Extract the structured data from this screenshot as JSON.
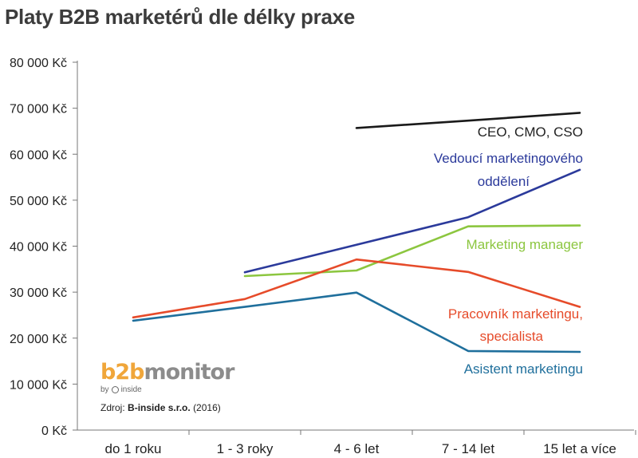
{
  "chart_data": {
    "type": "line",
    "title": "Platy B2B marketérů dle délky praxe",
    "categories": [
      "do 1 roku",
      "1 - 3 roky",
      "4 - 6 let",
      "7 - 14 let",
      "15 let a více"
    ],
    "ylim": [
      0,
      80000
    ],
    "y_ticks": [
      {
        "value": 0,
        "label": "0 Kč"
      },
      {
        "value": 10000,
        "label": "10 000 Kč"
      },
      {
        "value": 20000,
        "label": "20 000 Kč"
      },
      {
        "value": 30000,
        "label": "30 000 Kč"
      },
      {
        "value": 40000,
        "label": "40 000 Kč"
      },
      {
        "value": 50000,
        "label": "50 000 Kč"
      },
      {
        "value": 60000,
        "label": "60 000 Kč"
      },
      {
        "value": 70000,
        "label": "70 000 Kč"
      },
      {
        "value": 80000,
        "label": "80 000 Kč"
      }
    ],
    "grid": false,
    "legend": "labels placed next to lines (right side)",
    "series": [
      {
        "name": "CEO, CMO, CSO",
        "label_lines": [
          "CEO, CMO, CSO"
        ],
        "color": "#1a1a1a",
        "values": [
          null,
          null,
          65700,
          67300,
          69000
        ]
      },
      {
        "name": "Vedoucí marketingového oddělení",
        "label_lines": [
          "Vedoucí marketingového",
          "oddělení"
        ],
        "color": "#2b3a9b",
        "values": [
          null,
          34300,
          40300,
          46300,
          56600
        ]
      },
      {
        "name": "Marketing manager",
        "label_lines": [
          "Marketing manager"
        ],
        "color": "#8cc63f",
        "values": [
          null,
          33500,
          34700,
          44300,
          44500
        ]
      },
      {
        "name": "Pracovník marketingu, specialista",
        "label_lines": [
          "Pracovník marketingu,",
          "specialista"
        ],
        "color": "#e64b2a",
        "values": [
          24500,
          28500,
          37100,
          34400,
          26800
        ]
      },
      {
        "name": "Asistent marketingu",
        "label_lines": [
          "Asistent marketingu"
        ],
        "color": "#1f6f9c",
        "values": [
          23800,
          26800,
          29900,
          17200,
          17000
        ]
      }
    ]
  },
  "logo": {
    "part1": "b2b",
    "part2": "monitor",
    "byline": "by",
    "byline_brand": "inside",
    "color_primary": "#f0a63a",
    "color_secondary": "#8c8c8c"
  },
  "source": {
    "prefix": "Zdroj:",
    "org": "B-inside s.r.o.",
    "year": "(2016)"
  }
}
